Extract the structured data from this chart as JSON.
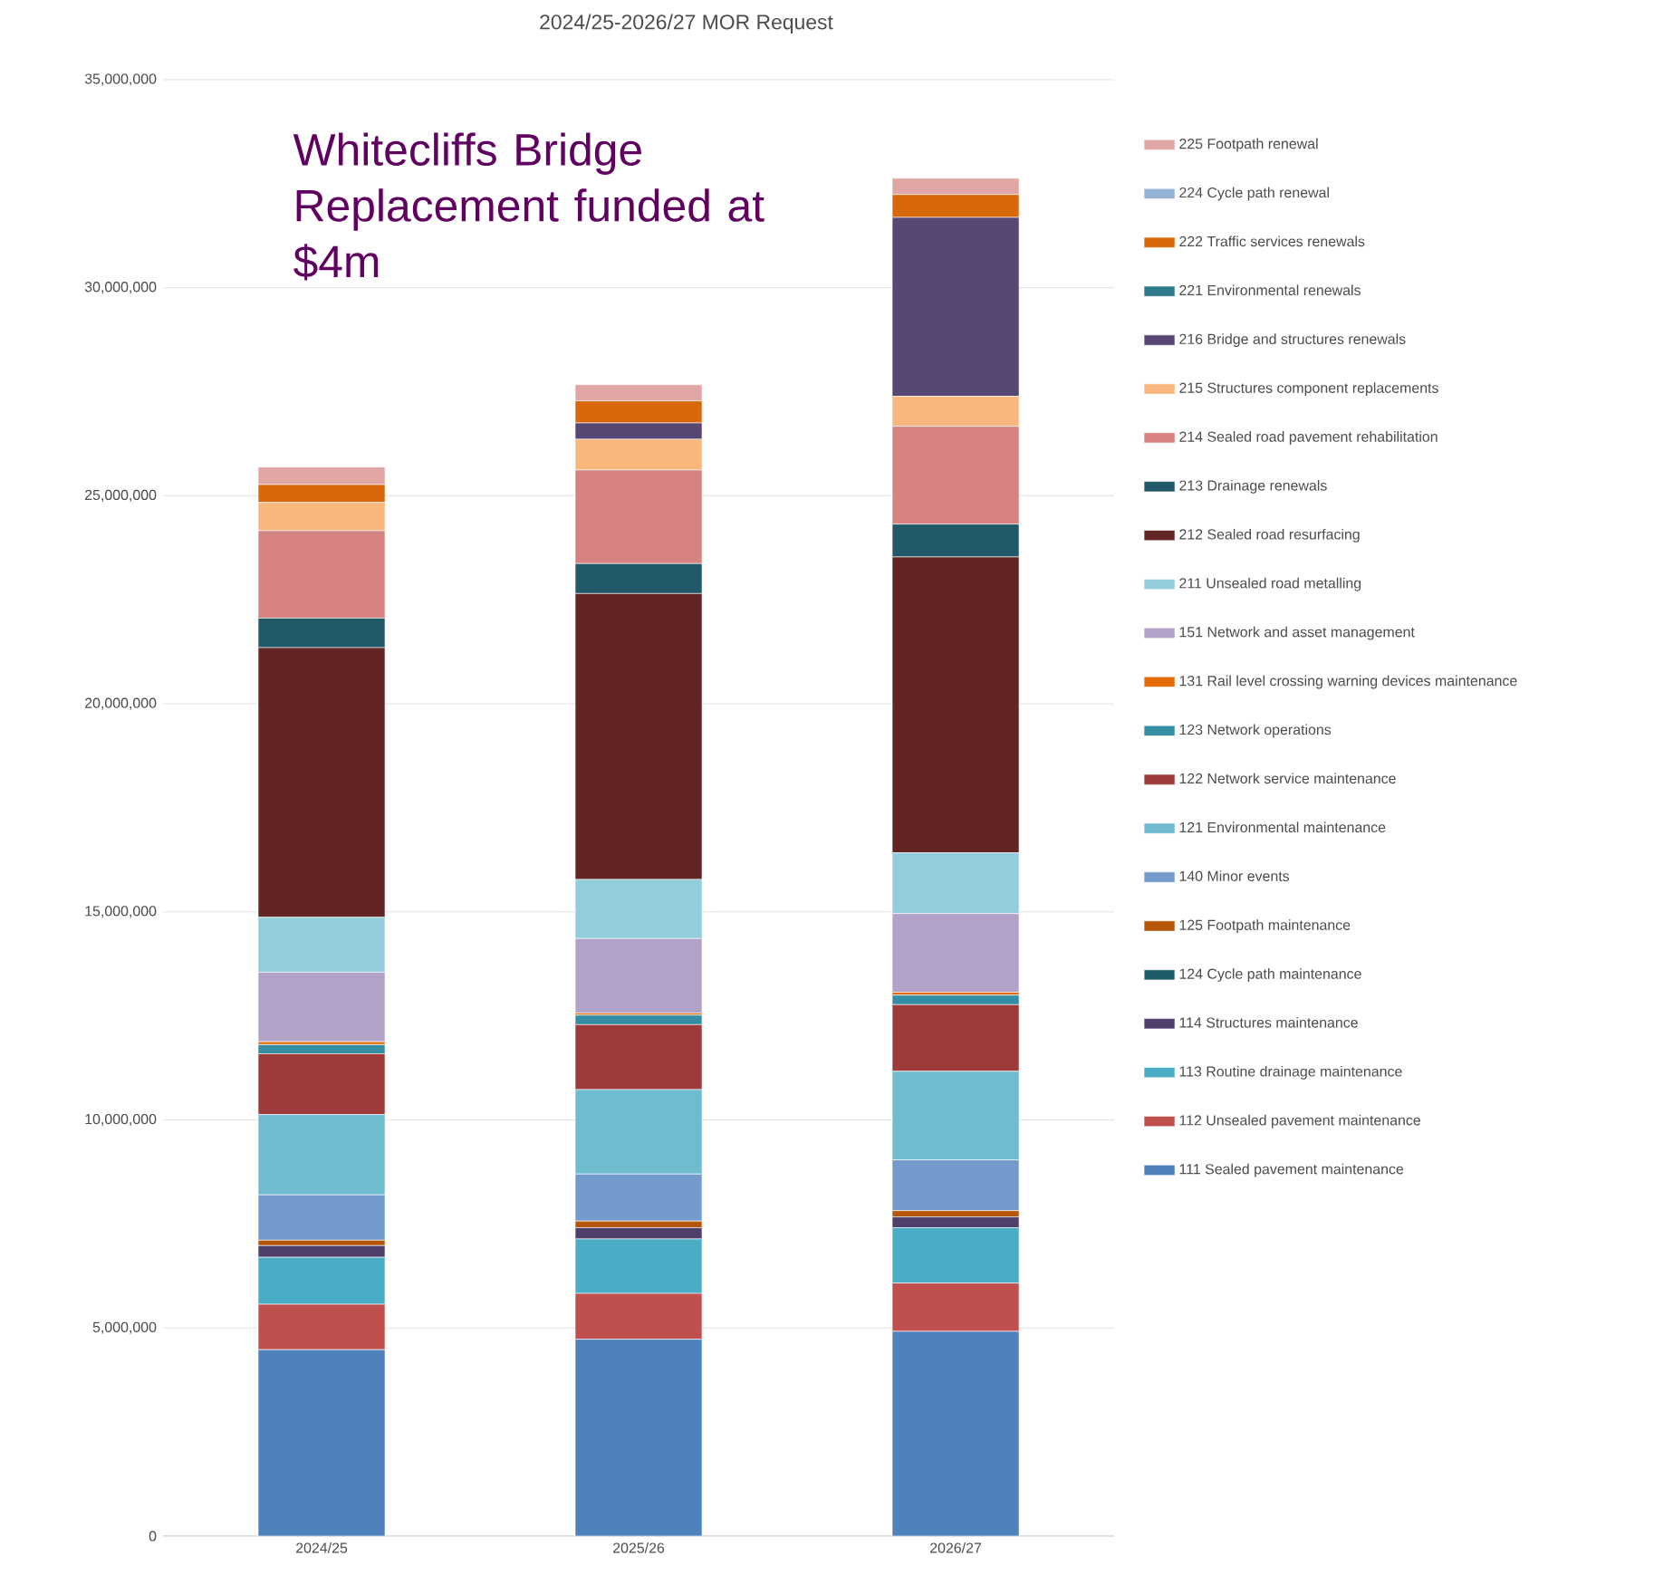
{
  "chart_data": {
    "type": "bar",
    "stacked": true,
    "title": "2024/25-2026/27  MOR Request",
    "categories": [
      "2024/25",
      "2025/26",
      "2026/27"
    ],
    "ylim": [
      0,
      35000000
    ],
    "yticks": [
      0,
      {
        "value": 5000000,
        "label": "5,000,000"
      },
      {
        "value": 10000000,
        "label": "10,000,000"
      },
      {
        "value": 15000000,
        "label": "15,000,000"
      },
      {
        "value": 20000000,
        "label": "20,000,000"
      },
      {
        "value": 25000000,
        "label": "25,000,000"
      },
      {
        "value": 30000000,
        "label": "30,000,000"
      },
      {
        "value": 35000000,
        "label": "35,000,000"
      }
    ],
    "grid": "y",
    "legend": "right",
    "annotations": [
      "Whitecliffs Bridge Replacement funded at $4m"
    ],
    "series": [
      {
        "name": "111 Sealed pavement maintenance",
        "color": "#4f81bd",
        "values": [
          4480000,
          4730000,
          4920000
        ]
      },
      {
        "name": "112 Unsealed pavement maintenance",
        "color": "#c0504d",
        "values": [
          1090000,
          1100000,
          1160000
        ]
      },
      {
        "name": "113 Routine drainage maintenance",
        "color": "#4bacc6",
        "values": [
          1130000,
          1310000,
          1330000
        ]
      },
      {
        "name": "114 Structures maintenance",
        "color": "#4f3f6b",
        "values": [
          280000,
          270000,
          260000
        ]
      },
      {
        "name": "124 Cycle path maintenance",
        "color": "#1f5a6b",
        "values": [
          null,
          null,
          null
        ]
      },
      {
        "name": "125 Footpath maintenance",
        "color": "#b65708",
        "values": [
          130000,
          160000,
          150000
        ]
      },
      {
        "name": "140 Minor events",
        "color": "#729aca",
        "values": [
          1090000,
          1130000,
          1220000
        ]
      },
      {
        "name": "121 Environmental maintenance",
        "color": "#6fbbcf",
        "values": [
          1930000,
          2030000,
          2130000
        ]
      },
      {
        "name": "122 Network service maintenance",
        "color": "#9c3b39",
        "values": [
          1460000,
          1560000,
          1600000
        ]
      },
      {
        "name": "123 Network operations",
        "color": "#358ea3",
        "values": [
          220000,
          230000,
          230000
        ]
      },
      {
        "name": "131 Rail level crossing warning devices maintenance",
        "color": "#e36c09",
        "values": [
          70000,
          50000,
          70000
        ]
      },
      {
        "name": "151 Network and asset management",
        "color": "#b3a2c7",
        "values": [
          1670000,
          1790000,
          1890000
        ]
      },
      {
        "name": "211 Unsealed road metalling",
        "color": "#93cddd",
        "values": [
          1320000,
          1420000,
          1460000
        ]
      },
      {
        "name": "212 Sealed road resurfacing",
        "color": "#632523",
        "values": [
          6480000,
          6870000,
          7110000
        ]
      },
      {
        "name": "213 Drainage renewals",
        "color": "#215968",
        "values": [
          710000,
          720000,
          790000
        ]
      },
      {
        "name": "214 Sealed road pavement rehabilitation",
        "color": "#d68281",
        "values": [
          2100000,
          2250000,
          2350000
        ]
      },
      {
        "name": "215 Structures component replacements",
        "color": "#f9b77d",
        "values": [
          680000,
          740000,
          720000
        ]
      },
      {
        "name": "216 Bridge and structures renewals",
        "color": "#584674",
        "values": [
          0,
          390000,
          4300000
        ]
      },
      {
        "name": "221 Environmental renewals",
        "color": "#2c7a8c",
        "values": [
          0,
          0,
          0
        ]
      },
      {
        "name": "222 Traffic services renewals",
        "color": "#d8680b",
        "values": [
          430000,
          530000,
          550000
        ]
      },
      {
        "name": "224 Cycle path renewal",
        "color": "#95b3d7",
        "values": [
          0,
          0,
          0
        ]
      },
      {
        "name": "225 Footpath renewal",
        "color": "#e0a6a6",
        "values": [
          420000,
          390000,
          390000
        ]
      }
    ]
  }
}
